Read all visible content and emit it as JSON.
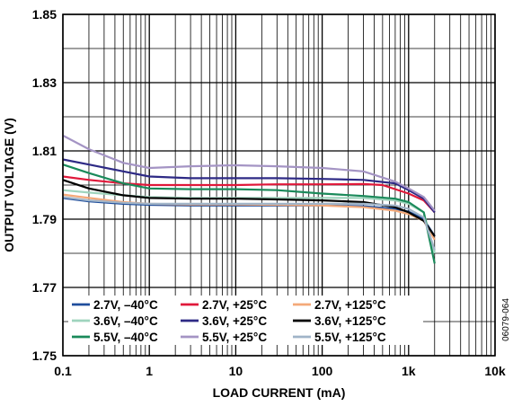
{
  "chart_data": {
    "type": "line",
    "xlabel": "LOAD CURRENT (mA)",
    "ylabel": "OUTPUT VOLTAGE (V)",
    "xscale": "log",
    "xlim": [
      0.1,
      10000
    ],
    "ylim": [
      1.75,
      1.85
    ],
    "x_ticks": [
      0.1,
      1,
      10,
      100,
      1000,
      10000
    ],
    "x_tick_labels": [
      "0.1",
      "1",
      "10",
      "100",
      "1k",
      "10k"
    ],
    "y_ticks": [
      1.75,
      1.77,
      1.79,
      1.81,
      1.83,
      1.85
    ],
    "y_tick_labels": [
      "1.75",
      "1.77",
      "1.79",
      "1.81",
      "1.83",
      "1.85"
    ],
    "grid": true,
    "legend_position": "bottom-inside",
    "figure_code": "06079-064",
    "series": [
      {
        "name": "2.7V, –40°C",
        "color": "#1f4e9c",
        "points": [
          [
            0.1,
            1.7962
          ],
          [
            0.2,
            1.7952
          ],
          [
            0.5,
            1.7945
          ],
          [
            1,
            1.7942
          ],
          [
            3,
            1.794
          ],
          [
            10,
            1.794
          ],
          [
            30,
            1.794
          ],
          [
            100,
            1.794
          ],
          [
            300,
            1.7938
          ],
          [
            700,
            1.793
          ],
          [
            1000,
            1.7922
          ],
          [
            1500,
            1.79
          ],
          [
            2000,
            1.785
          ]
        ]
      },
      {
        "name": "2.7V, +25°C",
        "color": "#e0183a",
        "points": [
          [
            0.1,
            1.8025
          ],
          [
            0.2,
            1.8015
          ],
          [
            0.5,
            1.8005
          ],
          [
            1,
            1.8
          ],
          [
            3,
            1.8
          ],
          [
            10,
            1.8
          ],
          [
            30,
            1.8002
          ],
          [
            100,
            1.8002
          ],
          [
            300,
            1.8003
          ],
          [
            500,
            1.8
          ],
          [
            1000,
            1.7975
          ],
          [
            1500,
            1.7955
          ],
          [
            2000,
            1.792
          ]
        ]
      },
      {
        "name": "2.7V, +125°C",
        "color": "#f4a979",
        "points": [
          [
            0.1,
            1.7972
          ],
          [
            0.2,
            1.7962
          ],
          [
            0.5,
            1.795
          ],
          [
            1,
            1.7945
          ],
          [
            3,
            1.7943
          ],
          [
            10,
            1.7943
          ],
          [
            30,
            1.7942
          ],
          [
            100,
            1.794
          ],
          [
            300,
            1.7935
          ],
          [
            700,
            1.7925
          ],
          [
            1000,
            1.7915
          ],
          [
            1500,
            1.7895
          ],
          [
            2000,
            1.784
          ]
        ]
      },
      {
        "name": "3.6V, –40°C",
        "color": "#9fd4bd",
        "points": [
          [
            0.1,
            1.7985
          ],
          [
            0.2,
            1.7978
          ],
          [
            0.5,
            1.797
          ],
          [
            1,
            1.7965
          ],
          [
            3,
            1.7962
          ],
          [
            10,
            1.7962
          ],
          [
            30,
            1.7962
          ],
          [
            100,
            1.7962
          ],
          [
            300,
            1.7962
          ],
          [
            700,
            1.7955
          ],
          [
            1000,
            1.7945
          ],
          [
            1500,
            1.792
          ],
          [
            2000,
            1.78
          ]
        ]
      },
      {
        "name": "3.6V, +25°C",
        "color": "#2e2a85",
        "points": [
          [
            0.1,
            1.8075
          ],
          [
            0.2,
            1.806
          ],
          [
            0.5,
            1.804
          ],
          [
            1,
            1.8025
          ],
          [
            3,
            1.802
          ],
          [
            10,
            1.802
          ],
          [
            30,
            1.802
          ],
          [
            100,
            1.8018
          ],
          [
            300,
            1.8015
          ],
          [
            700,
            1.8005
          ],
          [
            1000,
            1.7985
          ],
          [
            1500,
            1.796
          ],
          [
            2000,
            1.792
          ]
        ]
      },
      {
        "name": "3.6V, +125°C",
        "color": "#000000",
        "points": [
          [
            0.1,
            1.8015
          ],
          [
            0.2,
            1.799
          ],
          [
            0.5,
            1.797
          ],
          [
            1,
            1.7962
          ],
          [
            3,
            1.796
          ],
          [
            10,
            1.796
          ],
          [
            30,
            1.7958
          ],
          [
            100,
            1.7955
          ],
          [
            300,
            1.795
          ],
          [
            700,
            1.7935
          ],
          [
            1000,
            1.792
          ],
          [
            1500,
            1.7895
          ],
          [
            2000,
            1.785
          ]
        ]
      },
      {
        "name": "5.5V, –40°C",
        "color": "#1a8a5a",
        "points": [
          [
            0.1,
            1.806
          ],
          [
            0.2,
            1.8035
          ],
          [
            0.5,
            1.8005
          ],
          [
            1,
            1.799
          ],
          [
            3,
            1.7988
          ],
          [
            10,
            1.7988
          ],
          [
            30,
            1.7985
          ],
          [
            100,
            1.7975
          ],
          [
            300,
            1.7968
          ],
          [
            700,
            1.796
          ],
          [
            1000,
            1.795
          ],
          [
            1500,
            1.792
          ],
          [
            2000,
            1.777
          ]
        ]
      },
      {
        "name": "5.5V, +25°C",
        "color": "#a494c4",
        "points": [
          [
            0.1,
            1.8145
          ],
          [
            0.2,
            1.8105
          ],
          [
            0.5,
            1.8065
          ],
          [
            1,
            1.805
          ],
          [
            3,
            1.8055
          ],
          [
            10,
            1.8058
          ],
          [
            30,
            1.8055
          ],
          [
            100,
            1.805
          ],
          [
            300,
            1.804
          ],
          [
            700,
            1.801
          ],
          [
            1000,
            1.799
          ],
          [
            1500,
            1.7965
          ],
          [
            2000,
            1.7925
          ]
        ]
      },
      {
        "name": "5.5V, +125°C",
        "color": "#a0b4c8",
        "points": [
          [
            0.1,
            1.7965
          ],
          [
            0.2,
            1.7955
          ],
          [
            0.5,
            1.7948
          ],
          [
            1,
            1.7945
          ],
          [
            3,
            1.7945
          ],
          [
            10,
            1.7945
          ],
          [
            30,
            1.7945
          ],
          [
            100,
            1.7945
          ],
          [
            300,
            1.7945
          ],
          [
            700,
            1.794
          ],
          [
            1000,
            1.793
          ],
          [
            1500,
            1.7905
          ],
          [
            2000,
            1.781
          ]
        ]
      }
    ]
  }
}
